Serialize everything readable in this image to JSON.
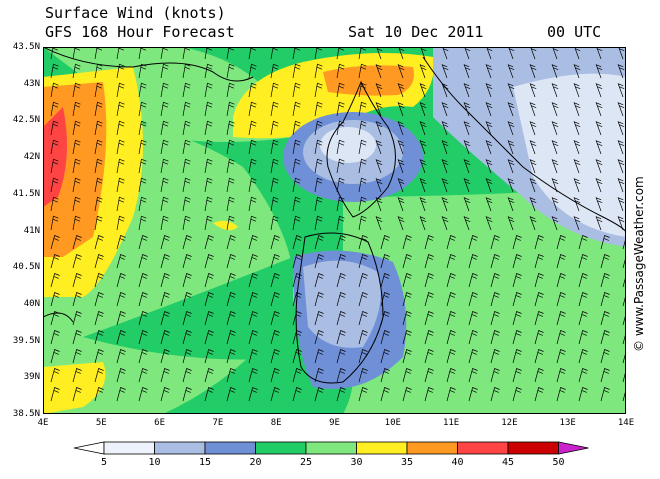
{
  "header": {
    "title": "Surface Wind (knots)",
    "subtitle": "GFS 168 Hour Forecast",
    "date": "Sat 10 Dec 2011",
    "time": "00 UTC"
  },
  "credit": "© www.PassageWeather.com",
  "map": {
    "lat_labels": [
      "43.5N",
      "43N",
      "42.5N",
      "42N",
      "41.5N",
      "41N",
      "40.5N",
      "40N",
      "39.5N",
      "39N",
      "38.5N"
    ],
    "lon_labels": [
      "4E",
      "5E",
      "6E",
      "7E",
      "8E",
      "9E",
      "10E",
      "11E",
      "12E",
      "13E",
      "14E"
    ],
    "regions": [
      "Corsica",
      "Sardinia",
      "Italy",
      "France"
    ],
    "colors": {
      "sea_green": "#22cc66",
      "light_green": "#7ee87e",
      "yellow": "#ffee22",
      "orange": "#ff9922",
      "red": "#ff4444",
      "pale_blue": "#dde6f5",
      "mid_blue": "#aabde3",
      "blue": "#6f8fd6"
    }
  },
  "scale": {
    "labels": [
      "5",
      "10",
      "15",
      "20",
      "25",
      "30",
      "35",
      "40",
      "45",
      "50"
    ],
    "colors": [
      "#eef2fb",
      "#aabde3",
      "#6f8fd6",
      "#22cc66",
      "#7ee87e",
      "#ffee22",
      "#ff9922",
      "#ff4444",
      "#cc0000"
    ],
    "left_cap": "#ffffff",
    "right_cap": "#cc22cc"
  }
}
